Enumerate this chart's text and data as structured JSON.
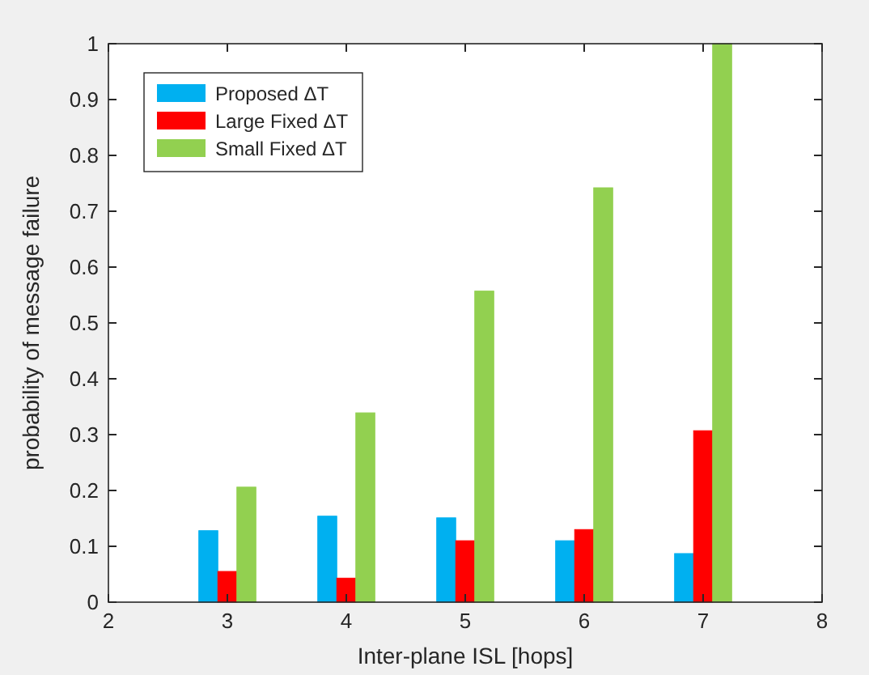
{
  "chart_data": {
    "type": "bar",
    "xlabel": "Inter-plane ISL [hops]",
    "ylabel": "probability of message failure",
    "x": [
      3,
      4,
      5,
      6,
      7
    ],
    "xlim": [
      2,
      8
    ],
    "xticks": [
      2,
      3,
      4,
      5,
      6,
      7,
      8
    ],
    "ylim": [
      0,
      1
    ],
    "yticks": [
      0,
      0.1,
      0.2,
      0.3,
      0.4,
      0.5,
      0.6,
      0.7,
      0.8,
      0.9,
      1
    ],
    "legend": "top left",
    "grid": false,
    "series": [
      {
        "name": "Proposed ΔT",
        "color": "#00b0f0",
        "values": [
          0.128,
          0.154,
          0.151,
          0.11,
          0.087
        ]
      },
      {
        "name": "Large Fixed ΔT",
        "color": "#ff0000",
        "values": [
          0.055,
          0.043,
          0.11,
          0.13,
          0.307
        ]
      },
      {
        "name": "Small Fixed ΔT",
        "color": "#92d050",
        "values": [
          0.206,
          0.339,
          0.557,
          0.742,
          1.0
        ]
      }
    ]
  }
}
